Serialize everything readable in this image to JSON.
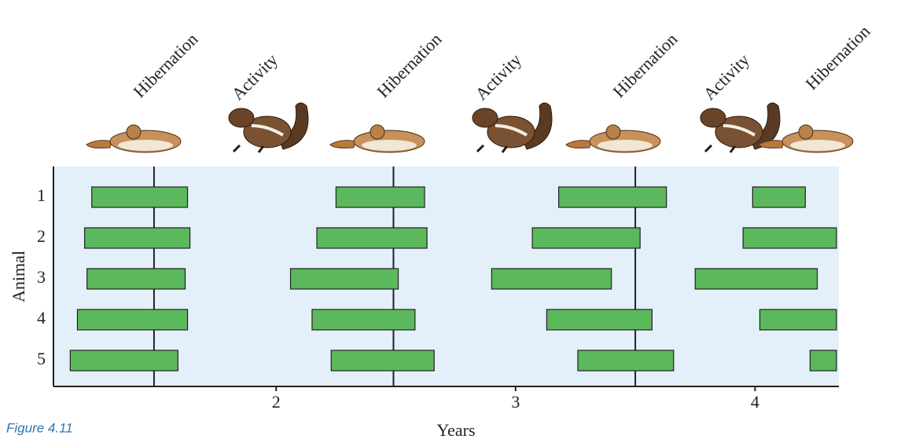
{
  "chart_data": {
    "type": "range",
    "phases": [
      "Hibernation",
      "Activity",
      "Hibernation",
      "Activity",
      "Hibernation",
      "Activity",
      "Hibernation"
    ],
    "xlabel": "Years",
    "ylabel": "Animal",
    "categories": [
      "1",
      "2",
      "3",
      "4",
      "5"
    ],
    "ranges": [
      [
        [
          1.23,
          1.63
        ],
        [
          2.25,
          2.62
        ],
        [
          3.18,
          3.63
        ],
        [
          3.99,
          4.21
        ]
      ],
      [
        [
          1.2,
          1.64
        ],
        [
          2.17,
          2.63
        ],
        [
          3.07,
          3.52
        ],
        [
          3.95,
          4.34
        ]
      ],
      [
        [
          1.21,
          1.62
        ],
        [
          2.06,
          2.51
        ],
        [
          2.9,
          3.4
        ],
        [
          3.75,
          4.26
        ]
      ],
      [
        [
          1.17,
          1.63
        ],
        [
          2.15,
          2.58
        ],
        [
          3.13,
          3.57
        ],
        [
          4.02,
          4.34
        ]
      ],
      [
        [
          1.14,
          1.59
        ],
        [
          2.23,
          2.66
        ],
        [
          3.26,
          3.66
        ],
        [
          4.23,
          4.34
        ]
      ]
    ],
    "reference_lines": [
      1.49,
      2.49,
      3.5
    ],
    "color": "#5cb85c",
    "background": "#e3f0fa",
    "xlim": [
      1.07,
      4.35
    ],
    "xticks": [
      2,
      3,
      4
    ]
  },
  "caption": "Figure 4.11"
}
